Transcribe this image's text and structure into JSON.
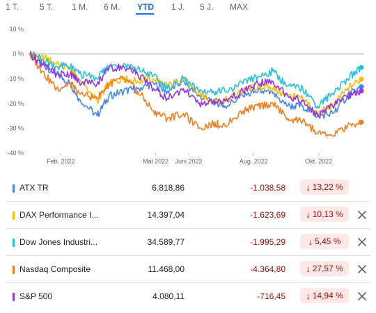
{
  "range_tabs": [
    {
      "label": "1 T.",
      "active": false
    },
    {
      "label": "5 T.",
      "active": false
    },
    {
      "label": "1 M.",
      "active": false
    },
    {
      "label": "6 M.",
      "active": false
    },
    {
      "label": "YTD",
      "active": true
    },
    {
      "label": "1 J.",
      "active": false
    },
    {
      "label": "5 J.",
      "active": false
    },
    {
      "label": "MAX",
      "active": false
    }
  ],
  "chart_data": {
    "type": "line",
    "ylim": [
      -40,
      10
    ],
    "yticks": [
      10,
      0,
      -10,
      -20,
      -30,
      -40
    ],
    "ytick_labels": [
      "10 %",
      "0 %",
      "-10 %",
      "-20 %",
      "-30 %",
      "-40 %"
    ],
    "xlim": [
      "2022-01-01",
      "2022-11-12"
    ],
    "xticks": [
      {
        "date": "2022-02-01",
        "label": "Feb. 2022"
      },
      {
        "date": "2022-05-01",
        "label": "Mai 2022"
      },
      {
        "date": "2022-06-01",
        "label": "Juni 2022"
      },
      {
        "date": "2022-08-01",
        "label": "Aug. 2022"
      },
      {
        "date": "2022-10-01",
        "label": "Okt. 2022"
      }
    ],
    "baseline": 0,
    "series": [
      {
        "name": "ATX TR",
        "color": "#4285f4",
        "x": [
          "2022-01-03",
          "2022-01-14",
          "2022-01-28",
          "2022-02-10",
          "2022-02-18",
          "2022-03-07",
          "2022-03-18",
          "2022-04-01",
          "2022-04-14",
          "2022-04-29",
          "2022-05-12",
          "2022-05-27",
          "2022-06-10",
          "2022-06-24",
          "2022-07-05",
          "2022-07-22",
          "2022-08-05",
          "2022-08-19",
          "2022-09-02",
          "2022-09-16",
          "2022-09-30",
          "2022-10-14",
          "2022-10-28",
          "2022-11-10"
        ],
        "y": [
          0,
          -4,
          -8,
          -12,
          -18,
          -25,
          -17,
          -15,
          -14,
          -12,
          -15,
          -11,
          -17,
          -19,
          -21,
          -17,
          -15,
          -16,
          -21,
          -21,
          -25,
          -24,
          -17,
          -13.22
        ]
      },
      {
        "name": "DAX Performance Index",
        "color": "#fbbc04",
        "x": [
          "2022-01-03",
          "2022-01-14",
          "2022-01-28",
          "2022-02-10",
          "2022-02-18",
          "2022-03-07",
          "2022-03-18",
          "2022-04-01",
          "2022-04-14",
          "2022-04-29",
          "2022-05-12",
          "2022-05-27",
          "2022-06-10",
          "2022-06-24",
          "2022-07-05",
          "2022-07-22",
          "2022-08-05",
          "2022-08-19",
          "2022-09-02",
          "2022-09-16",
          "2022-09-30",
          "2022-10-14",
          "2022-10-28",
          "2022-11-10"
        ],
        "y": [
          0,
          -1,
          -4,
          -6,
          -10,
          -19,
          -12,
          -10,
          -11,
          -10,
          -13,
          -10,
          -16,
          -19,
          -19,
          -15,
          -13,
          -14,
          -17,
          -18,
          -24,
          -21,
          -14,
          -10.13
        ]
      },
      {
        "name": "Dow Jones Industrial Average",
        "color": "#24c1e0",
        "x": [
          "2022-01-03",
          "2022-01-14",
          "2022-01-28",
          "2022-02-10",
          "2022-02-18",
          "2022-03-07",
          "2022-03-18",
          "2022-04-01",
          "2022-04-14",
          "2022-04-29",
          "2022-05-12",
          "2022-05-27",
          "2022-06-10",
          "2022-06-24",
          "2022-07-05",
          "2022-07-22",
          "2022-08-05",
          "2022-08-19",
          "2022-09-02",
          "2022-09-16",
          "2022-09-30",
          "2022-10-14",
          "2022-10-28",
          "2022-11-10"
        ],
        "y": [
          0,
          -2,
          -5,
          -5,
          -8,
          -10,
          -5,
          -4,
          -6,
          -9,
          -14,
          -10,
          -15,
          -15,
          -15,
          -12,
          -9,
          -7,
          -13,
          -14,
          -21,
          -16,
          -10,
          -5.45
        ]
      },
      {
        "name": "Nasdaq Composite",
        "color": "#fa7b17",
        "x": [
          "2022-01-03",
          "2022-01-14",
          "2022-01-28",
          "2022-02-10",
          "2022-02-18",
          "2022-03-07",
          "2022-03-18",
          "2022-04-01",
          "2022-04-14",
          "2022-04-29",
          "2022-05-12",
          "2022-05-27",
          "2022-06-10",
          "2022-06-24",
          "2022-07-05",
          "2022-07-22",
          "2022-08-05",
          "2022-08-19",
          "2022-09-02",
          "2022-09-16",
          "2022-09-30",
          "2022-10-14",
          "2022-10-28",
          "2022-11-10"
        ],
        "y": [
          0,
          -7,
          -14,
          -12,
          -16,
          -18,
          -12,
          -10,
          -15,
          -23,
          -26,
          -24,
          -30,
          -28,
          -29,
          -23,
          -21,
          -20,
          -26,
          -27,
          -32,
          -33,
          -29,
          -27.57
        ]
      },
      {
        "name": "S&P 500",
        "color": "#9334e6",
        "x": [
          "2022-01-03",
          "2022-01-14",
          "2022-01-28",
          "2022-02-10",
          "2022-02-18",
          "2022-03-07",
          "2022-03-18",
          "2022-04-01",
          "2022-04-14",
          "2022-04-29",
          "2022-05-12",
          "2022-05-27",
          "2022-06-10",
          "2022-06-24",
          "2022-07-05",
          "2022-07-22",
          "2022-08-05",
          "2022-08-19",
          "2022-09-02",
          "2022-09-16",
          "2022-09-30",
          "2022-10-14",
          "2022-10-28",
          "2022-11-10"
        ],
        "y": [
          0,
          -4,
          -8,
          -8,
          -11,
          -12,
          -6,
          -5,
          -8,
          -14,
          -18,
          -14,
          -20,
          -19,
          -19,
          -15,
          -12,
          -11,
          -17,
          -19,
          -25,
          -21,
          -17,
          -14.94
        ]
      }
    ]
  },
  "rows": [
    {
      "name": "ATX TR",
      "price": "6.818,86",
      "change": "-1.038,58",
      "pct": "13,22 %",
      "color": "#4285f4",
      "removable": false
    },
    {
      "name": "DAX Performance I...",
      "price": "14.397,04",
      "change": "-1.623,69",
      "pct": "10,13 %",
      "color": "#fbbc04",
      "removable": true
    },
    {
      "name": "Dow Jones Industri...",
      "price": "34.589,77",
      "change": "-1.995,29",
      "pct": "5,45 %",
      "color": "#24c1e0",
      "removable": true
    },
    {
      "name": "Nasdaq Composite",
      "price": "11.468,00",
      "change": "-4.364,80",
      "pct": "27,57 %",
      "color": "#fa7b17",
      "removable": true
    },
    {
      "name": "S&P 500",
      "price": "4.080,11",
      "change": "-716,45",
      "pct": "14,94 %",
      "color": "#9334e6",
      "removable": true
    }
  ],
  "icons": {
    "down": "arrow-down-icon",
    "close": "close-icon"
  }
}
